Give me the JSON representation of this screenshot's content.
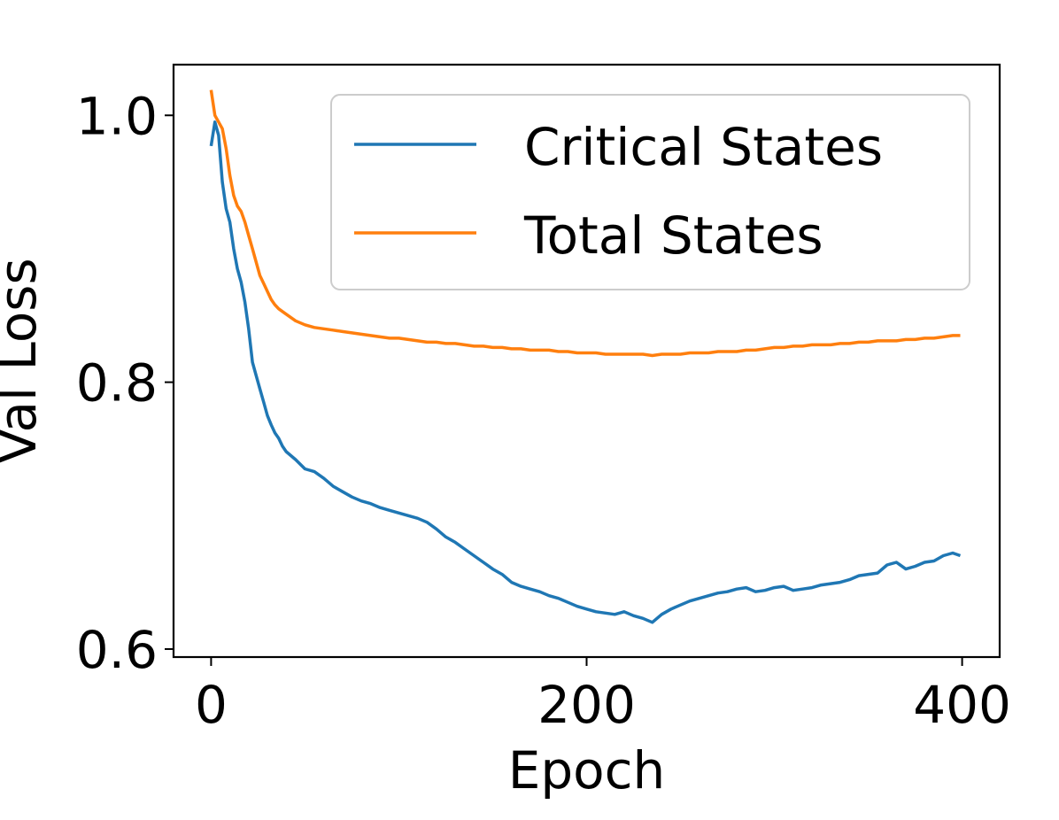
{
  "chart_data": {
    "type": "line",
    "title": "",
    "xlabel": "Epoch",
    "ylabel": "Val Loss",
    "xlim": [
      -20,
      420
    ],
    "ylim": [
      0.594,
      1.038
    ],
    "xticks": [
      0,
      200,
      400
    ],
    "xtick_labels": [
      "0",
      "200",
      "400"
    ],
    "yticks": [
      0.6,
      0.8,
      1.0
    ],
    "ytick_labels": [
      "0.6",
      "0.8",
      "1.0"
    ],
    "grid": false,
    "legend": {
      "position": "upper-right"
    },
    "series": [
      {
        "name": "Critical States",
        "color": "#1f77b4",
        "x": [
          0,
          2,
          4,
          6,
          8,
          10,
          12,
          14,
          16,
          18,
          20,
          22,
          24,
          26,
          28,
          30,
          32,
          34,
          36,
          38,
          40,
          45,
          50,
          55,
          60,
          65,
          70,
          75,
          80,
          85,
          90,
          95,
          100,
          105,
          110,
          115,
          120,
          125,
          130,
          135,
          140,
          145,
          150,
          155,
          160,
          165,
          170,
          175,
          180,
          185,
          190,
          195,
          200,
          205,
          210,
          215,
          220,
          225,
          230,
          235,
          240,
          245,
          250,
          255,
          260,
          265,
          270,
          275,
          280,
          285,
          290,
          295,
          300,
          305,
          310,
          315,
          320,
          325,
          330,
          335,
          340,
          345,
          350,
          355,
          360,
          365,
          370,
          375,
          380,
          385,
          390,
          395,
          399
        ],
        "y": [
          0.977,
          0.995,
          0.985,
          0.95,
          0.93,
          0.92,
          0.9,
          0.885,
          0.875,
          0.86,
          0.84,
          0.815,
          0.805,
          0.795,
          0.785,
          0.775,
          0.768,
          0.762,
          0.758,
          0.752,
          0.748,
          0.742,
          0.735,
          0.733,
          0.728,
          0.722,
          0.718,
          0.714,
          0.711,
          0.709,
          0.706,
          0.704,
          0.702,
          0.7,
          0.698,
          0.695,
          0.69,
          0.684,
          0.68,
          0.675,
          0.67,
          0.665,
          0.66,
          0.656,
          0.65,
          0.647,
          0.645,
          0.643,
          0.64,
          0.638,
          0.635,
          0.632,
          0.63,
          0.628,
          0.627,
          0.626,
          0.628,
          0.625,
          0.623,
          0.62,
          0.626,
          0.63,
          0.633,
          0.636,
          0.638,
          0.64,
          0.642,
          0.643,
          0.645,
          0.646,
          0.643,
          0.644,
          0.646,
          0.647,
          0.644,
          0.645,
          0.646,
          0.648,
          0.649,
          0.65,
          0.652,
          0.655,
          0.656,
          0.657,
          0.663,
          0.665,
          0.66,
          0.662,
          0.665,
          0.666,
          0.67,
          0.672,
          0.67
        ]
      },
      {
        "name": "Total States",
        "color": "#ff7f0e",
        "x": [
          0,
          2,
          4,
          6,
          8,
          10,
          12,
          14,
          16,
          18,
          20,
          22,
          24,
          26,
          28,
          30,
          32,
          34,
          36,
          38,
          40,
          45,
          50,
          55,
          60,
          65,
          70,
          75,
          80,
          85,
          90,
          95,
          100,
          105,
          110,
          115,
          120,
          125,
          130,
          135,
          140,
          145,
          150,
          155,
          160,
          165,
          170,
          175,
          180,
          185,
          190,
          195,
          200,
          205,
          210,
          215,
          220,
          225,
          230,
          235,
          240,
          245,
          250,
          255,
          260,
          265,
          270,
          275,
          280,
          285,
          290,
          295,
          300,
          305,
          310,
          315,
          320,
          325,
          330,
          335,
          340,
          345,
          350,
          355,
          360,
          365,
          370,
          375,
          380,
          385,
          390,
          395,
          399
        ],
        "y": [
          1.019,
          1.0,
          0.995,
          0.99,
          0.975,
          0.955,
          0.94,
          0.932,
          0.928,
          0.92,
          0.91,
          0.9,
          0.89,
          0.88,
          0.874,
          0.868,
          0.862,
          0.858,
          0.855,
          0.853,
          0.851,
          0.846,
          0.843,
          0.841,
          0.84,
          0.839,
          0.838,
          0.837,
          0.836,
          0.835,
          0.834,
          0.833,
          0.833,
          0.832,
          0.831,
          0.83,
          0.83,
          0.829,
          0.829,
          0.828,
          0.827,
          0.827,
          0.826,
          0.826,
          0.825,
          0.825,
          0.824,
          0.824,
          0.824,
          0.823,
          0.823,
          0.822,
          0.822,
          0.822,
          0.821,
          0.821,
          0.821,
          0.821,
          0.821,
          0.82,
          0.821,
          0.821,
          0.821,
          0.822,
          0.822,
          0.822,
          0.823,
          0.823,
          0.823,
          0.824,
          0.824,
          0.825,
          0.826,
          0.826,
          0.827,
          0.827,
          0.828,
          0.828,
          0.828,
          0.829,
          0.829,
          0.83,
          0.83,
          0.831,
          0.831,
          0.831,
          0.832,
          0.832,
          0.833,
          0.833,
          0.834,
          0.835,
          0.835
        ]
      }
    ]
  }
}
